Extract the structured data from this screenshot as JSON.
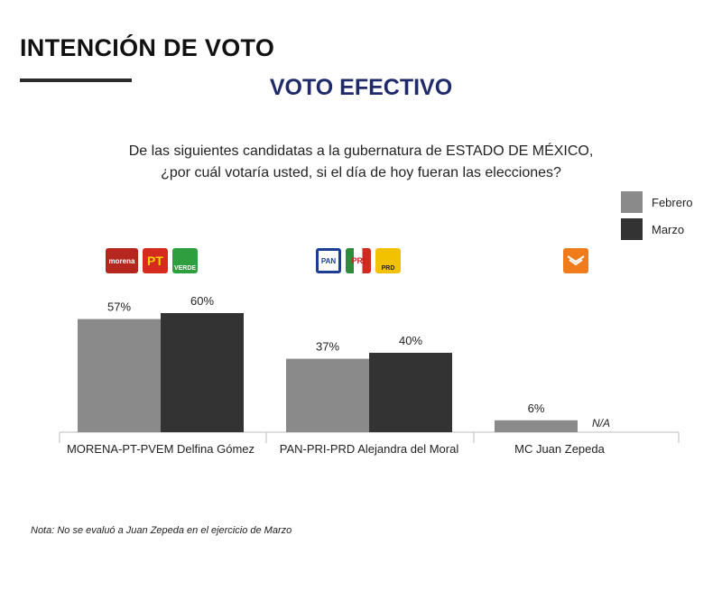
{
  "header": {
    "title": "INTENCIÓN DE VOTO",
    "subtitle": "VOTO EFECTIVO",
    "question_line1": "De las siguientes candidatas a la gubernatura de ESTADO DE MÉXICO,",
    "question_line2": "¿por cuál votaría usted, si el día de hoy fueran las elecciones?"
  },
  "legend": [
    {
      "label": "Febrero",
      "color": "#8a8a8a"
    },
    {
      "label": "Marzo",
      "color": "#333333"
    }
  ],
  "logos": {
    "group1": [
      "morena",
      "PT",
      "VERDE"
    ],
    "group2": [
      "PAN",
      "PRI",
      "PRD"
    ],
    "group3": [
      "MC"
    ]
  },
  "note": "Nota: No se evaluó a Juan Zepeda en el ejercicio de Marzo",
  "chart_data": {
    "type": "bar",
    "categories": [
      "MORENA-PT-PVEM Delfina Gómez",
      "PAN-PRI-PRD Alejandra del Moral",
      "MC Juan Zepeda"
    ],
    "series": [
      {
        "name": "Febrero",
        "values": [
          57,
          37,
          6
        ],
        "labels": [
          "57%",
          "37%",
          "6%"
        ],
        "color": "#8a8a8a"
      },
      {
        "name": "Marzo",
        "values": [
          60,
          40,
          null
        ],
        "labels": [
          "60%",
          "40%",
          "N/A"
        ],
        "color": "#333333"
      }
    ],
    "ylim": [
      0,
      60
    ],
    "grid": false,
    "legend_position": "top-right"
  }
}
